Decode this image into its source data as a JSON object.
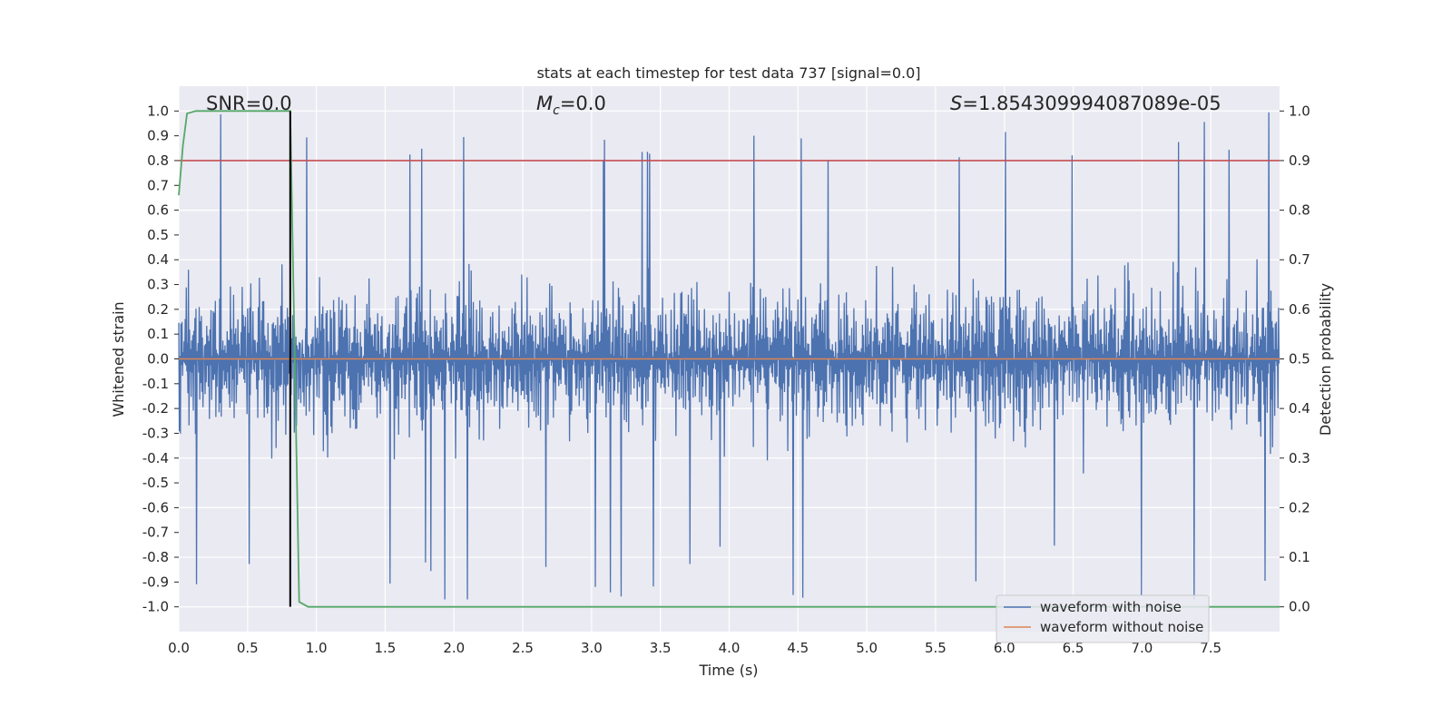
{
  "chart_data": {
    "type": "line",
    "title": "stats at each timestep for test data 737 [signal=0.0]",
    "xlabel": "Time (s)",
    "ylabel": "Whitened strain",
    "y2label": "Detection probability",
    "xlim": [
      0.0,
      8.0
    ],
    "ylim": [
      -1.1,
      1.1
    ],
    "y2lim": [
      -0.05,
      1.05
    ],
    "xticks": [
      0.0,
      0.5,
      1.0,
      1.5,
      2.0,
      2.5,
      3.0,
      3.5,
      4.0,
      4.5,
      5.0,
      5.5,
      6.0,
      6.5,
      7.0,
      7.5
    ],
    "xtick_labels": [
      "0.0",
      "0.5",
      "1.0",
      "1.5",
      "2.0",
      "2.5",
      "3.0",
      "3.5",
      "4.0",
      "4.5",
      "5.0",
      "5.5",
      "6.0",
      "6.5",
      "7.0",
      "7.5"
    ],
    "yticks": [
      -1.0,
      -0.9,
      -0.8,
      -0.7,
      -0.6,
      -0.5,
      -0.4,
      -0.3,
      -0.2,
      -0.1,
      0.0,
      0.1,
      0.2,
      0.3,
      0.4,
      0.5,
      0.6,
      0.7,
      0.8,
      0.9,
      1.0
    ],
    "ytick_labels": [
      "-1.0",
      "-0.9",
      "-0.8",
      "-0.7",
      "-0.6",
      "-0.5",
      "-0.4",
      "-0.3",
      "-0.2",
      "-0.1",
      "0.0",
      "0.1",
      "0.2",
      "0.3",
      "0.4",
      "0.5",
      "0.6",
      "0.7",
      "0.8",
      "0.9",
      "1.0"
    ],
    "y2ticks": [
      0.0,
      0.1,
      0.2,
      0.3,
      0.4,
      0.5,
      0.6,
      0.7,
      0.8,
      0.9,
      1.0
    ],
    "y2tick_labels": [
      "0.0",
      "0.1",
      "0.2",
      "0.3",
      "0.4",
      "0.5",
      "0.6",
      "0.7",
      "0.8",
      "0.9",
      "1.0"
    ],
    "annotations": {
      "snr": "SNR=0.0",
      "mc_symbol": "M",
      "mc_sub": "c",
      "mc_value": "=0.0",
      "s_symbol": "S",
      "s_value": "=1.854309994087089e-05"
    },
    "series": [
      {
        "name": "waveform with noise",
        "color": "#4c72b0",
        "axis": "left",
        "kind": "noise",
        "n_samples": 2048,
        "typical_amplitude": 0.45,
        "peak_amplitude": 1.0,
        "seed": 737
      },
      {
        "name": "waveform without noise",
        "color": "#dd8452",
        "axis": "left",
        "x": [
          0.0,
          8.0
        ],
        "y": [
          0.0,
          0.0
        ]
      },
      {
        "name": "detection probability",
        "color": "#55a868",
        "axis": "right",
        "x": [
          0.0,
          0.03,
          0.06,
          0.125,
          0.19,
          0.25,
          0.31,
          0.375,
          0.44,
          0.5,
          0.56,
          0.625,
          0.69,
          0.75,
          0.81,
          0.875,
          0.94,
          1.0,
          1.5,
          2.0,
          2.5,
          3.0,
          3.5,
          4.0,
          4.5,
          5.0,
          5.5,
          6.0,
          6.5,
          7.0,
          7.5,
          8.0
        ],
        "y": [
          0.83,
          0.93,
          0.995,
          1.0,
          1.0,
          1.0,
          1.0,
          1.0,
          1.0,
          1.0,
          1.0,
          1.0,
          1.0,
          1.0,
          1.0,
          0.01,
          0.0,
          0.0,
          0.0,
          0.0,
          0.0,
          0.0,
          0.0,
          0.0,
          0.0,
          0.0,
          0.0,
          0.0,
          0.0,
          0.0,
          0.0,
          0.0
        ]
      }
    ],
    "threshold_line": {
      "axis": "right",
      "value": 0.9,
      "color": "#c44e52"
    },
    "marker_line": {
      "x": 0.81,
      "y_from": 0.0,
      "y_to": 1.0,
      "axis": "right",
      "color": "#000000"
    },
    "legend": {
      "position": "lower-right",
      "entries": [
        {
          "label": "waveform with noise",
          "color": "#4c72b0"
        },
        {
          "label": "waveform without noise",
          "color": "#dd8452"
        }
      ]
    },
    "grid": true,
    "background": "#eaeaf2"
  }
}
